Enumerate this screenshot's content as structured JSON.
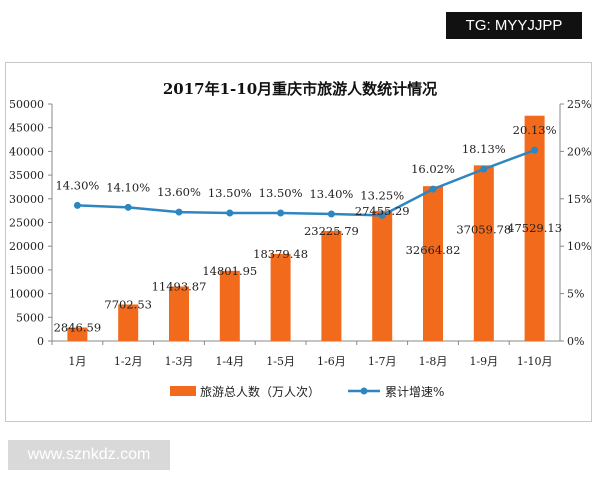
{
  "badge": "TG: MYYJJPP",
  "footer_site": "www.sznkdz.com",
  "chart_data": {
    "type": "bar+line",
    "title": "2017年1-10月重庆市旅游人数统计情况",
    "categories": [
      "1月",
      "1-2月",
      "1-3月",
      "1-4月",
      "1-5月",
      "1-6月",
      "1-7月",
      "1-8月",
      "1-9月",
      "1-10月"
    ],
    "series": [
      {
        "name": "旅游总人数（万人次）",
        "type": "bar",
        "axis": "left",
        "color": "#f26a1b",
        "values": [
          2846.59,
          7702.53,
          11493.87,
          14801.95,
          18379.48,
          23225.79,
          27455.29,
          32664.82,
          37059.78,
          47529.13
        ],
        "labels": [
          "2846.59",
          "7702.53",
          "11493.87",
          "14801.95",
          "18379.48",
          "23225.79",
          "27455.29",
          "32664.82",
          "37059.78",
          "47529.13"
        ]
      },
      {
        "name": "累计增速%",
        "type": "line",
        "axis": "right",
        "color": "#2e86c1",
        "values": [
          14.3,
          14.1,
          13.6,
          13.5,
          13.5,
          13.4,
          13.25,
          16.02,
          18.13,
          20.13
        ],
        "labels": [
          "14.30%",
          "14.10%",
          "13.60%",
          "13.50%",
          "13.50%",
          "13.40%",
          "13.25%",
          "16.02%",
          "18.13%",
          "20.13%"
        ]
      }
    ],
    "y_left": {
      "range": [
        0,
        50000
      ],
      "ticks": [
        "0",
        "5000",
        "10000",
        "15000",
        "20000",
        "25000",
        "30000",
        "35000",
        "40000",
        "45000",
        "50000"
      ]
    },
    "y_right": {
      "range": [
        0,
        25
      ],
      "ticks": [
        "0%",
        "5%",
        "10%",
        "15%",
        "20%",
        "25%"
      ]
    },
    "grid": false,
    "legend": "bottom"
  }
}
